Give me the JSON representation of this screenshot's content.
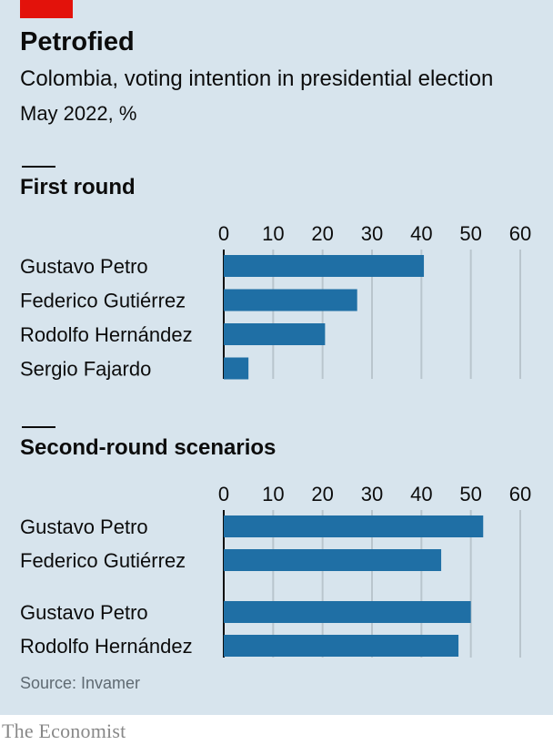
{
  "header": {
    "title": "Petrofied",
    "subtitle": "Colombia, voting intention in presidential election",
    "period": "May 2022, %"
  },
  "source": "Source: Invamer",
  "brand": "The Economist",
  "colors": {
    "background": "#d7e4ed",
    "bar": "#1f6fa5",
    "accent": "#e3120b",
    "gridline": "#b9c5cd"
  },
  "chart_data": [
    {
      "type": "bar",
      "orientation": "horizontal",
      "title": "First round",
      "xlim": [
        0,
        60
      ],
      "ticks": [
        0,
        10,
        20,
        30,
        40,
        50,
        60
      ],
      "grid": true,
      "categories": [
        "Gustavo Petro",
        "Federico Gutiérrez",
        "Rodolfo Hernández",
        "Sergio Fajardo"
      ],
      "values": [
        40.5,
        27,
        20.5,
        5
      ]
    },
    {
      "type": "bar",
      "orientation": "horizontal",
      "title": "Second-round scenarios",
      "xlim": [
        0,
        60
      ],
      "ticks": [
        0,
        10,
        20,
        30,
        40,
        50,
        60
      ],
      "grid": true,
      "groups": [
        {
          "categories": [
            "Gustavo Petro",
            "Federico Gutiérrez"
          ],
          "values": [
            52.5,
            44
          ]
        },
        {
          "categories": [
            "Gustavo Petro",
            "Rodolfo Hernández"
          ],
          "values": [
            50,
            47.5
          ]
        }
      ]
    }
  ]
}
